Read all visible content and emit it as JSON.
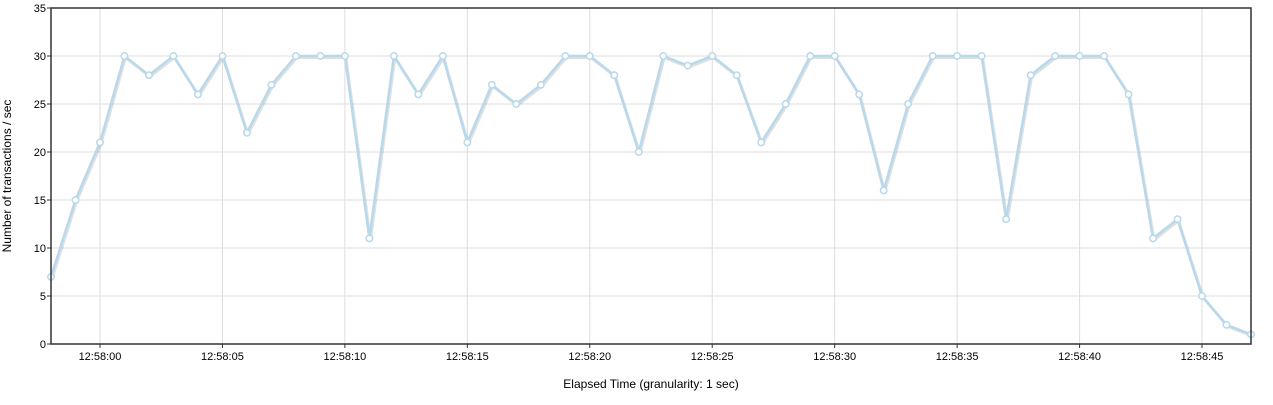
{
  "chart_data": {
    "type": "line",
    "title": "",
    "xlabel": "Elapsed Time (granularity: 1 sec)",
    "ylabel": "Number of transactions / sec",
    "ylim": [
      0,
      35
    ],
    "yticks": [
      0,
      5,
      10,
      15,
      20,
      25,
      30,
      35
    ],
    "xticks": [
      "12:58:00",
      "12:58:05",
      "12:58:10",
      "12:58:15",
      "12:58:20",
      "12:58:25",
      "12:58:30",
      "12:58:35",
      "12:58:40",
      "12:58:45"
    ],
    "x_start": "12:57:58",
    "x_end": "12:58:47",
    "grid": true,
    "legend": "none",
    "series": [
      {
        "color": "#b8d8ec",
        "marker_fill": "#ffffff",
        "x": [
          "12:57:58",
          "12:57:59",
          "12:58:00",
          "12:58:01",
          "12:58:02",
          "12:58:03",
          "12:58:04",
          "12:58:05",
          "12:58:06",
          "12:58:07",
          "12:58:08",
          "12:58:09",
          "12:58:10",
          "12:58:11",
          "12:58:12",
          "12:58:13",
          "12:58:14",
          "12:58:15",
          "12:58:16",
          "12:58:17",
          "12:58:18",
          "12:58:19",
          "12:58:20",
          "12:58:21",
          "12:58:22",
          "12:58:23",
          "12:58:24",
          "12:58:25",
          "12:58:26",
          "12:58:27",
          "12:58:28",
          "12:58:29",
          "12:58:30",
          "12:58:31",
          "12:58:32",
          "12:58:33",
          "12:58:34",
          "12:58:35",
          "12:58:36",
          "12:58:37",
          "12:58:38",
          "12:58:39",
          "12:58:40",
          "12:58:41",
          "12:58:42",
          "12:58:43",
          "12:58:44",
          "12:58:45",
          "12:58:46",
          "12:58:47"
        ],
        "values": [
          7,
          15,
          21,
          30,
          28,
          30,
          26,
          30,
          22,
          27,
          30,
          30,
          30,
          11,
          30,
          26,
          30,
          21,
          27,
          25,
          27,
          30,
          30,
          28,
          20,
          30,
          29,
          30,
          28,
          21,
          25,
          30,
          30,
          26,
          16,
          25,
          30,
          30,
          30,
          13,
          28,
          30,
          30,
          30,
          26,
          11,
          13,
          5,
          2,
          1
        ]
      }
    ]
  }
}
